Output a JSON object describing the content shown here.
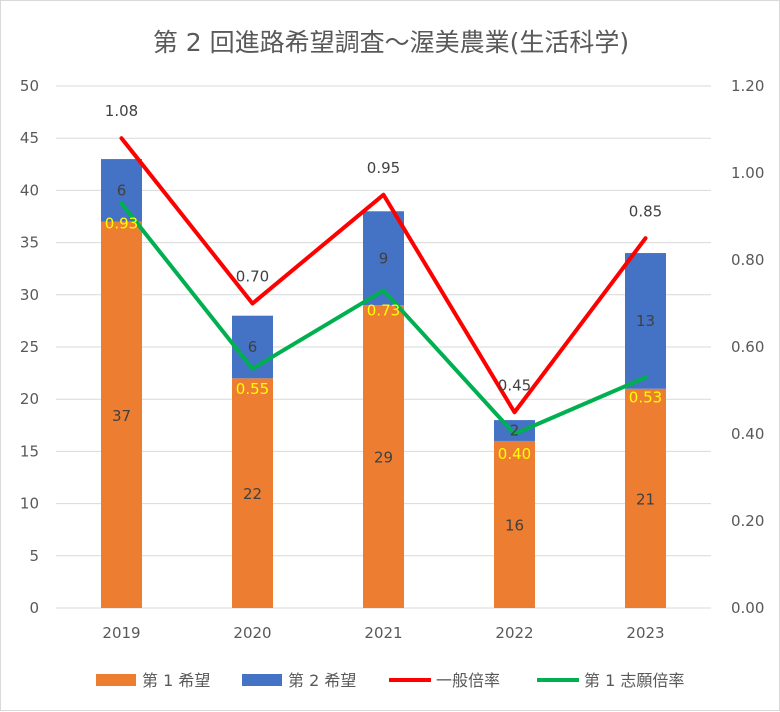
{
  "title": "第 2 回進路希望調査～渥美農業(生活科学)",
  "colors": {
    "first_choice": "#ed7d31",
    "second_choice": "#4472c4",
    "general_rate": "#ff0000",
    "first_rate": "#00b050",
    "grid": "#d9d9d9",
    "axis_text": "#595959",
    "rate_label": "#ffff00"
  },
  "chart_data": {
    "type": "bar",
    "stacked": true,
    "title": "第 2 回進路希望調査～渥美農業(生活科学)",
    "categories": [
      "2019",
      "2020",
      "2021",
      "2022",
      "2023"
    ],
    "series": [
      {
        "name": "第 1 希望",
        "type": "bar",
        "axis": "left",
        "values": [
          37,
          22,
          29,
          16,
          21
        ]
      },
      {
        "name": "第 2 希望",
        "type": "bar",
        "axis": "left",
        "values": [
          6,
          6,
          9,
          2,
          13
        ]
      },
      {
        "name": "一般倍率",
        "type": "line",
        "axis": "right",
        "values": [
          1.08,
          0.7,
          0.95,
          0.45,
          0.85
        ],
        "labels": [
          "1.08",
          "0.70",
          "0.95",
          "0.45",
          "0.85"
        ]
      },
      {
        "name": "第 1 志願倍率",
        "type": "line",
        "axis": "right",
        "values": [
          0.93,
          0.55,
          0.73,
          0.4,
          0.53
        ],
        "labels": [
          "0.93",
          "0.55",
          "0.73",
          "0.40",
          "0.53"
        ]
      }
    ],
    "ylim_left": [
      0,
      50
    ],
    "yticks_left": [
      "0",
      "5",
      "10",
      "15",
      "20",
      "25",
      "30",
      "35",
      "40",
      "45",
      "50"
    ],
    "ylim_right": [
      0,
      1.2
    ],
    "yticks_right": [
      "0.00",
      "0.20",
      "0.40",
      "0.60",
      "0.80",
      "1.00",
      "1.20"
    ],
    "grid": true,
    "legend_position": "bottom"
  }
}
